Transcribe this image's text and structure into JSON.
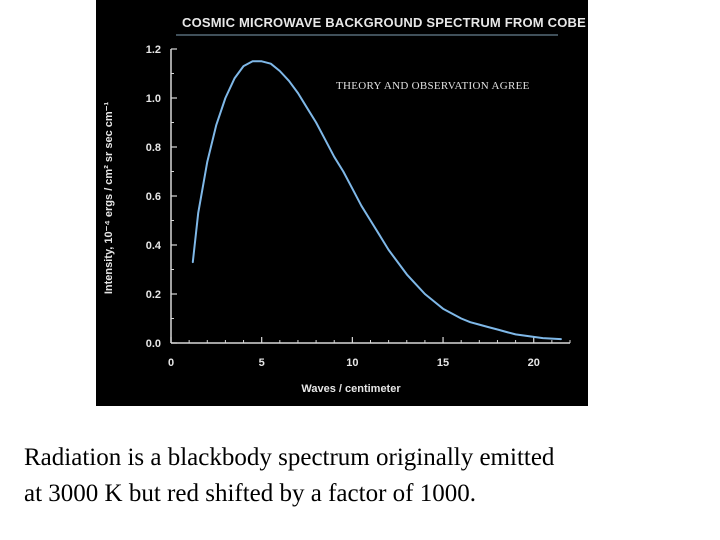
{
  "chart_data": {
    "type": "line",
    "title": "COSMIC MICROWAVE BACKGROUND SPECTRUM FROM COBE",
    "annotation": "THEORY AND OBSERVATION AGREE",
    "xlabel": "Waves / centimeter",
    "ylabel": "Intensity, 10⁻⁴ ergs / cm² sr sec cm⁻¹",
    "xlim": [
      0,
      22
    ],
    "ylim": [
      0,
      1.2
    ],
    "x_ticks": [
      "0",
      "5",
      "10",
      "15",
      "20"
    ],
    "y_ticks": [
      "0.0",
      "0.2",
      "0.4",
      "0.6",
      "0.8",
      "1.0",
      "1.2"
    ],
    "grid": false,
    "series": [
      {
        "color": "#7fb8e8",
        "x": [
          1.2,
          1.5,
          2,
          2.5,
          3,
          3.5,
          4,
          4.5,
          5,
          5.5,
          6,
          6.5,
          7,
          7.5,
          8,
          8.5,
          9,
          9.5,
          10,
          10.5,
          11,
          11.5,
          12,
          12.5,
          13,
          13.5,
          14,
          14.5,
          15,
          15.5,
          16,
          16.5,
          17,
          17.5,
          18,
          18.5,
          19,
          19.5,
          20,
          20.5,
          21,
          21.5
        ],
        "y": [
          0.33,
          0.53,
          0.74,
          0.89,
          1.0,
          1.08,
          1.13,
          1.15,
          1.15,
          1.14,
          1.11,
          1.07,
          1.02,
          0.96,
          0.9,
          0.83,
          0.76,
          0.7,
          0.63,
          0.56,
          0.5,
          0.44,
          0.38,
          0.33,
          0.28,
          0.24,
          0.2,
          0.17,
          0.14,
          0.12,
          0.1,
          0.085,
          0.075,
          0.065,
          0.055,
          0.045,
          0.035,
          0.03,
          0.025,
          0.02,
          0.018,
          0.016
        ]
      }
    ]
  },
  "caption": {
    "line1": "Radiation is a blackbody spectrum originally emitted",
    "line2": "at 3000 K but red shifted by a factor of 1000."
  }
}
